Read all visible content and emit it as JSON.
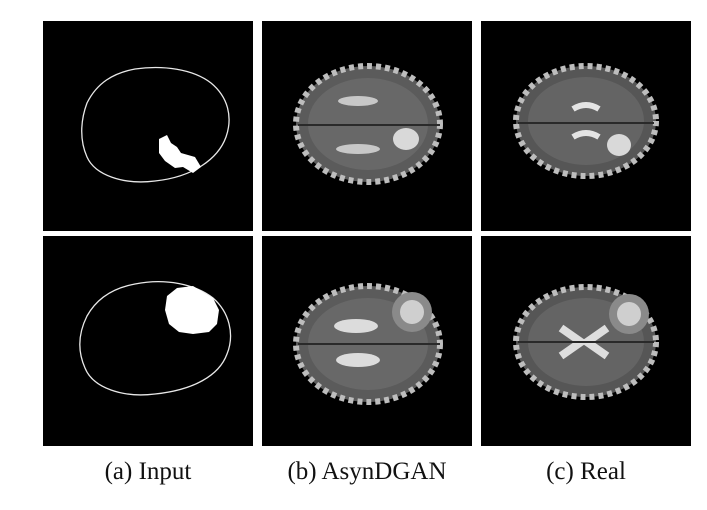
{
  "figure": {
    "columns": [
      {
        "id": "a",
        "caption": "(a) Input"
      },
      {
        "id": "b",
        "caption": "(b) AsynDGAN"
      },
      {
        "id": "c",
        "caption": "(c) Real"
      }
    ],
    "rows": 2,
    "colors": {
      "background": "#000000",
      "mask": "#ffffff",
      "outline": "#e8e8e8"
    }
  }
}
